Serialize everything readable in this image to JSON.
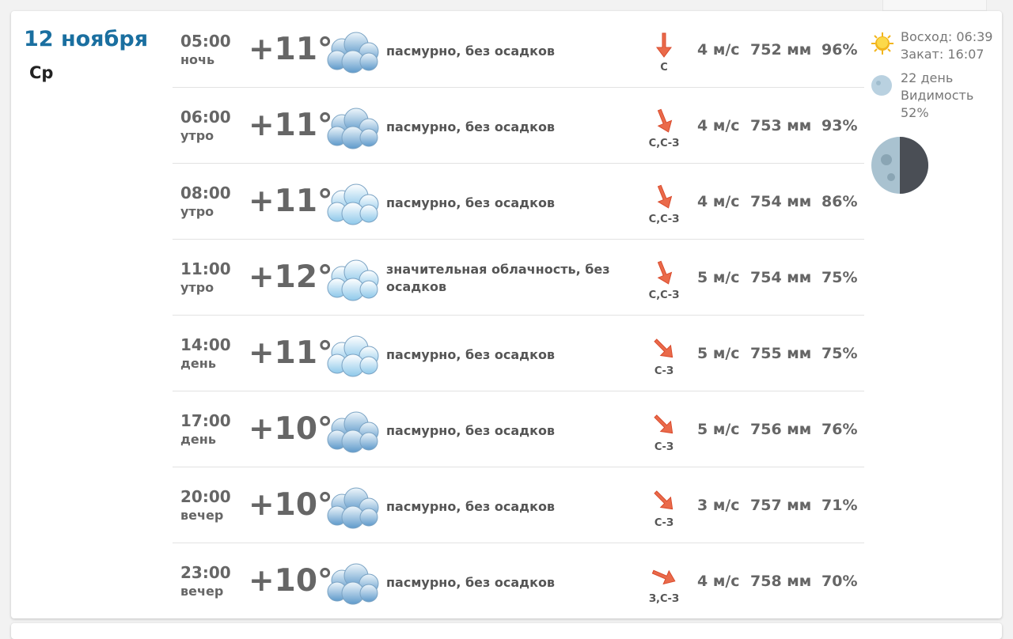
{
  "day": {
    "date": "12 ноября",
    "weekday": "Ср"
  },
  "rows": [
    {
      "time": "05:00",
      "part": "ночь",
      "temp": "+11°",
      "icon": "overcast-cloud-icon",
      "desc": "пасмурно, без осадков",
      "dir": "С",
      "arrow_angle": 0,
      "wind": "4 м/с",
      "pressure": "752 мм",
      "humidity": "96%"
    },
    {
      "time": "06:00",
      "part": "утро",
      "temp": "+11°",
      "icon": "overcast-cloud-icon",
      "desc": "пасмурно, без осадков",
      "dir": "С,С-З",
      "arrow_angle": -22,
      "wind": "4 м/с",
      "pressure": "753 мм",
      "humidity": "93%"
    },
    {
      "time": "08:00",
      "part": "утро",
      "temp": "+11°",
      "icon": "light-cloud-icon",
      "desc": "пасмурно, без осадков",
      "dir": "С,С-З",
      "arrow_angle": -22,
      "wind": "4 м/с",
      "pressure": "754 мм",
      "humidity": "86%"
    },
    {
      "time": "11:00",
      "part": "утро",
      "temp": "+12°",
      "icon": "light-cloud-icon",
      "desc": "значительная облачность, без осадков",
      "dir": "С,С-З",
      "arrow_angle": -22,
      "wind": "5 м/с",
      "pressure": "754 мм",
      "humidity": "75%"
    },
    {
      "time": "14:00",
      "part": "день",
      "temp": "+11°",
      "icon": "light-cloud-icon",
      "desc": "пасмурно, без осадков",
      "dir": "С-З",
      "arrow_angle": -45,
      "wind": "5 м/с",
      "pressure": "755 мм",
      "humidity": "75%"
    },
    {
      "time": "17:00",
      "part": "день",
      "temp": "+10°",
      "icon": "overcast-cloud-icon",
      "desc": "пасмурно, без осадков",
      "dir": "С-З",
      "arrow_angle": -45,
      "wind": "5 м/с",
      "pressure": "756 мм",
      "humidity": "76%"
    },
    {
      "time": "20:00",
      "part": "вечер",
      "temp": "+10°",
      "icon": "overcast-cloud-icon",
      "desc": "пасмурно, без осадков",
      "dir": "С-З",
      "arrow_angle": -45,
      "wind": "3 м/с",
      "pressure": "757 мм",
      "humidity": "71%"
    },
    {
      "time": "23:00",
      "part": "вечер",
      "temp": "+10°",
      "icon": "overcast-cloud-icon",
      "desc": "пасмурно, без осадков",
      "dir": "З,С-З",
      "arrow_angle": -67,
      "wind": "4 м/с",
      "pressure": "758 мм",
      "humidity": "70%"
    }
  ],
  "sun": {
    "sunrise": "Восход: 06:39",
    "sunset": "Закат: 16:07"
  },
  "moon": {
    "day": "22 день",
    "visibility_label": "Видимость",
    "visibility": "52%"
  },
  "colors": {
    "date": "#1a6fa0",
    "arrow": "#e8583a"
  }
}
